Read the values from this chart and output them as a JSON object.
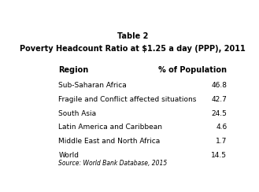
{
  "title_line1": "Table 2",
  "title_line2": "Poverty Headcount Ratio at $1.25 a day (PPP), 2011",
  "col_header_left": "Region",
  "col_header_right": "% of Population",
  "rows": [
    [
      "Sub-Saharan Africa",
      "46.8"
    ],
    [
      "Fragile and Conflict affected situations",
      "42.7"
    ],
    [
      "South Asia",
      "24.5"
    ],
    [
      "Latin America and Caribbean",
      "4.6"
    ],
    [
      "Middle East and North Africa",
      "1.7"
    ],
    [
      "World",
      "14.5"
    ]
  ],
  "source": "Source: World Bank Database, 2015",
  "background_color": "#ffffff",
  "text_color": "#000000",
  "title1_fontsize": 7,
  "title2_fontsize": 7,
  "col_header_fontsize": 7,
  "row_fontsize": 6.5,
  "source_fontsize": 5.5
}
